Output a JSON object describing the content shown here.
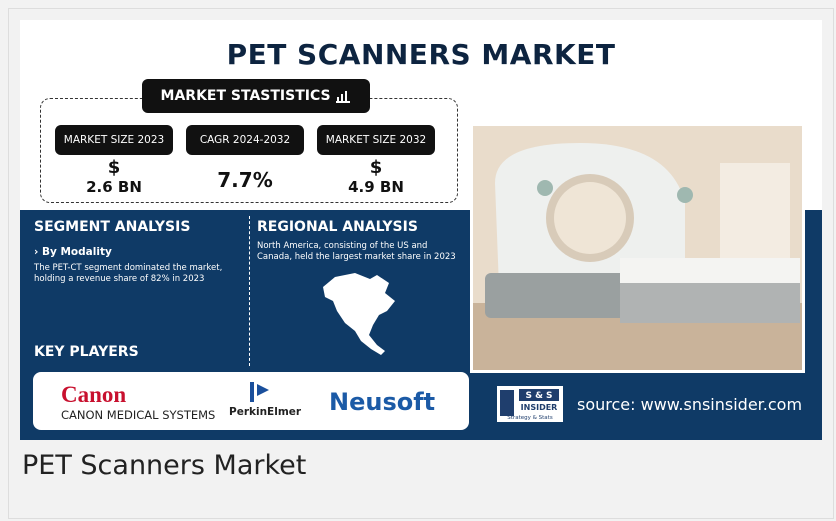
{
  "infographic": {
    "title": "PET SCANNERS MARKET",
    "stats_heading": "MARKET STASTISTICS",
    "stats": [
      {
        "label": "MARKET SIZE 2023",
        "currency": "$",
        "value": "2.6 BN"
      },
      {
        "label": "CAGR 2024-2032",
        "value": "7.7%"
      },
      {
        "label": "MARKET SIZE 2032",
        "currency": "$",
        "value": "4.9 BN"
      }
    ],
    "segment": {
      "heading": "SEGMENT ANALYSIS",
      "subheading": "› By Modality",
      "text": "The PET-CT segment dominated the market, holding a revenue share of 82% in 2023"
    },
    "regional": {
      "heading": "REGIONAL ANALYSIS",
      "text": "North America, consisting of the US and Canada, held the largest market share in 2023"
    },
    "key_players": {
      "heading": "KEY PLAYERS",
      "players": [
        {
          "name": "Canon",
          "subtitle": "CANON MEDICAL SYSTEMS"
        },
        {
          "name": "PerkinElmer"
        },
        {
          "name": "Neusoft"
        }
      ]
    },
    "logo": {
      "line1": "S & S",
      "line2": "INSIDER",
      "line3": "Strategy & Stats"
    },
    "source": "source: www.snsinsider.com"
  },
  "caption": "PET Scanners Market"
}
